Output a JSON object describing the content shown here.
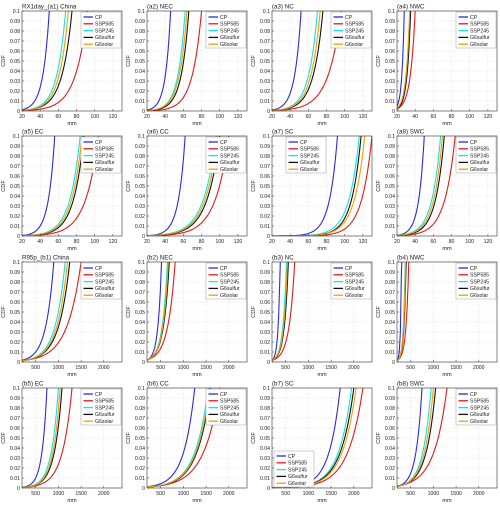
{
  "colors": {
    "CP": "#2b2bd6",
    "SSP585": "#e01a1a",
    "SSP245": "#18e0e0",
    "G6sulfur": "#111111",
    "G6solar": "#f0a000"
  },
  "legend_labels": [
    "CP",
    "SSP585",
    "SSP245",
    "G6sulfur",
    "G6solar"
  ],
  "chart_data": [
    {
      "type": "line",
      "title": "RX1day_(a1) China",
      "xlabel": "mm",
      "ylabel": "CDF",
      "xlim": [
        20,
        130
      ],
      "ylim": [
        0,
        0.1
      ],
      "xticks": [
        20,
        40,
        60,
        80,
        100,
        120
      ],
      "yticks": [
        0,
        0.01,
        0.02,
        0.03,
        0.04,
        0.05,
        0.06,
        0.07,
        0.08,
        0.09,
        0.1
      ],
      "grid": true,
      "legend": "top-right",
      "series": [
        {
          "name": "CP",
          "p01": 50,
          "p1": 34
        },
        {
          "name": "SSP585",
          "p01": 92,
          "p1": 62
        },
        {
          "name": "SSP245",
          "p01": 68,
          "p1": 46
        },
        {
          "name": "G6sulfur",
          "p01": 75,
          "p1": 50
        },
        {
          "name": "G6solar",
          "p01": 71,
          "p1": 48
        }
      ]
    },
    {
      "type": "line",
      "title": "(a2) NEC",
      "xlabel": "mm",
      "ylabel": "CDF",
      "xlim": [
        20,
        130
      ],
      "ylim": [
        0,
        0.1
      ],
      "xticks": [
        20,
        40,
        60,
        80,
        100,
        120
      ],
      "yticks": [
        0,
        0.01,
        0.02,
        0.03,
        0.04,
        0.05,
        0.06,
        0.07,
        0.08,
        0.09,
        0.1
      ],
      "grid": true,
      "legend": "top-right",
      "series": [
        {
          "name": "CP",
          "p01": 46,
          "p1": 33
        },
        {
          "name": "SSP585",
          "p01": 80,
          "p1": 57
        },
        {
          "name": "SSP245",
          "p01": 62,
          "p1": 44
        },
        {
          "name": "G6sulfur",
          "p01": 66,
          "p1": 47
        },
        {
          "name": "G6solar",
          "p01": 64,
          "p1": 45
        }
      ]
    },
    {
      "type": "line",
      "title": "(a3) NC",
      "xlabel": "mm",
      "ylabel": "CDF",
      "xlim": [
        20,
        130
      ],
      "ylim": [
        0,
        0.1
      ],
      "xticks": [
        20,
        40,
        60,
        80,
        100,
        120
      ],
      "yticks": [
        0,
        0.01,
        0.02,
        0.03,
        0.04,
        0.05,
        0.06,
        0.07,
        0.08,
        0.09,
        0.1
      ],
      "grid": true,
      "legend": "top-right",
      "series": [
        {
          "name": "CP",
          "p01": 52,
          "p1": 36
        },
        {
          "name": "SSP585",
          "p01": 96,
          "p1": 64
        },
        {
          "name": "SSP245",
          "p01": 70,
          "p1": 48
        },
        {
          "name": "G6sulfur",
          "p01": 76,
          "p1": 52
        },
        {
          "name": "G6solar",
          "p01": 73,
          "p1": 50
        }
      ]
    },
    {
      "type": "line",
      "title": "(a4) NWC",
      "xlabel": "mm",
      "ylabel": "CDF",
      "xlim": [
        20,
        130
      ],
      "ylim": [
        0,
        0.1
      ],
      "xticks": [
        20,
        40,
        60,
        80,
        100,
        120
      ],
      "yticks": [
        0,
        0.01,
        0.02,
        0.03,
        0.04,
        0.05,
        0.06,
        0.07,
        0.08,
        0.09,
        0.1
      ],
      "grid": true,
      "legend": "top-right",
      "series": [
        {
          "name": "CP",
          "p01": 28,
          "p1": 22
        },
        {
          "name": "SSP585",
          "p01": 40,
          "p1": 28
        },
        {
          "name": "SSP245",
          "p01": 34,
          "p1": 25
        },
        {
          "name": "G6sulfur",
          "p01": 35,
          "p1": 26
        },
        {
          "name": "G6solar",
          "p01": 34,
          "p1": 25
        }
      ]
    },
    {
      "type": "line",
      "title": "(a5) EC",
      "xlabel": "mm",
      "ylabel": "CDF",
      "xlim": [
        20,
        130
      ],
      "ylim": [
        0,
        0.1
      ],
      "xticks": [
        20,
        40,
        60,
        80,
        100,
        120
      ],
      "yticks": [
        0,
        0.01,
        0.02,
        0.03,
        0.04,
        0.05,
        0.06,
        0.07,
        0.08,
        0.09,
        0.1
      ],
      "grid": true,
      "legend": "top-right",
      "series": [
        {
          "name": "CP",
          "p01": 56,
          "p1": 40
        },
        {
          "name": "SSP585",
          "p01": 104,
          "p1": 72
        },
        {
          "name": "SSP245",
          "p01": 84,
          "p1": 58
        },
        {
          "name": "G6sulfur",
          "p01": 88,
          "p1": 62
        },
        {
          "name": "G6solar",
          "p01": 86,
          "p1": 60
        }
      ]
    },
    {
      "type": "line",
      "title": "(a6) CC",
      "xlabel": "mm",
      "ylabel": "CDF",
      "xlim": [
        20,
        130
      ],
      "ylim": [
        0,
        0.1
      ],
      "xticks": [
        20,
        40,
        60,
        80,
        100,
        120
      ],
      "yticks": [
        0,
        0.01,
        0.02,
        0.03,
        0.04,
        0.05,
        0.06,
        0.07,
        0.08,
        0.09,
        0.1
      ],
      "grid": true,
      "legend": "top-right",
      "series": [
        {
          "name": "CP",
          "p01": 62,
          "p1": 45
        },
        {
          "name": "SSP585",
          "p01": 110,
          "p1": 76
        },
        {
          "name": "SSP245",
          "p01": 96,
          "p1": 64
        },
        {
          "name": "G6sulfur",
          "p01": 100,
          "p1": 68
        },
        {
          "name": "G6solar",
          "p01": 98,
          "p1": 66
        }
      ]
    },
    {
      "type": "line",
      "title": "(a7) SC",
      "xlabel": "mm",
      "ylabel": "CDF",
      "xlim": [
        20,
        130
      ],
      "ylim": [
        0,
        0.1
      ],
      "xticks": [
        20,
        40,
        60,
        80,
        100,
        120
      ],
      "yticks": [
        0,
        0.01,
        0.02,
        0.03,
        0.04,
        0.05,
        0.06,
        0.07,
        0.08,
        0.09,
        0.1
      ],
      "grid": true,
      "legend": "top-left",
      "series": [
        {
          "name": "CP",
          "p01": 92,
          "p1": 72
        },
        {
          "name": "SSP585",
          "p01": 130,
          "p1": 104
        },
        {
          "name": "SSP245",
          "p01": 116,
          "p1": 90
        },
        {
          "name": "G6sulfur",
          "p01": 118,
          "p1": 94
        },
        {
          "name": "G6solar",
          "p01": 122,
          "p1": 96
        }
      ]
    },
    {
      "type": "line",
      "title": "(a8) SWC",
      "xlabel": "mm",
      "ylabel": "CDF",
      "xlim": [
        20,
        130
      ],
      "ylim": [
        0,
        0.1
      ],
      "xticks": [
        20,
        40,
        60,
        80,
        100,
        120
      ],
      "yticks": [
        0,
        0.01,
        0.02,
        0.03,
        0.04,
        0.05,
        0.06,
        0.07,
        0.08,
        0.09,
        0.1
      ],
      "grid": true,
      "legend": "top-right",
      "series": [
        {
          "name": "CP",
          "p01": 50,
          "p1": 36
        },
        {
          "name": "SSP585",
          "p01": 84,
          "p1": 58
        },
        {
          "name": "SSP245",
          "p01": 68,
          "p1": 46
        },
        {
          "name": "G6sulfur",
          "p01": 72,
          "p1": 50
        },
        {
          "name": "G6solar",
          "p01": 70,
          "p1": 48
        }
      ]
    },
    {
      "type": "line",
      "title": "R95p_(b1) China",
      "xlabel": "mm",
      "ylabel": "CDF",
      "xlim": [
        200,
        2400
      ],
      "ylim": [
        0,
        0.1
      ],
      "xticks": [
        500,
        1000,
        1500,
        2000
      ],
      "yticks": [
        0,
        0.01,
        0.02,
        0.03,
        0.04,
        0.05,
        0.06,
        0.07,
        0.08,
        0.09,
        0.1
      ],
      "grid": true,
      "legend": "top-right",
      "series": [
        {
          "name": "CP",
          "p01": 900,
          "p1": 500
        },
        {
          "name": "SSP585",
          "p01": 1500,
          "p1": 800
        },
        {
          "name": "SSP245",
          "p01": 1150,
          "p1": 650
        },
        {
          "name": "G6sulfur",
          "p01": 1250,
          "p1": 700
        },
        {
          "name": "G6solar",
          "p01": 1200,
          "p1": 680
        }
      ]
    },
    {
      "type": "line",
      "title": "(b2) NEC",
      "xlabel": "mm",
      "ylabel": "CDF",
      "xlim": [
        200,
        2400
      ],
      "ylim": [
        0,
        0.1
      ],
      "xticks": [
        500,
        1000,
        1500,
        2000
      ],
      "yticks": [
        0,
        0.01,
        0.02,
        0.03,
        0.04,
        0.05,
        0.06,
        0.07,
        0.08,
        0.09,
        0.1
      ],
      "grid": true,
      "legend": "top-right",
      "series": [
        {
          "name": "CP",
          "p01": 520,
          "p1": 340
        },
        {
          "name": "SSP585",
          "p01": 820,
          "p1": 450
        },
        {
          "name": "SSP245",
          "p01": 650,
          "p1": 390
        },
        {
          "name": "G6sulfur",
          "p01": 690,
          "p1": 400
        },
        {
          "name": "G6solar",
          "p01": 670,
          "p1": 395
        }
      ]
    },
    {
      "type": "line",
      "title": "(b3) NC",
      "xlabel": "mm",
      "ylabel": "CDF",
      "xlim": [
        200,
        2400
      ],
      "ylim": [
        0,
        0.1
      ],
      "xticks": [
        500,
        1000,
        1500,
        2000
      ],
      "yticks": [
        0,
        0.01,
        0.02,
        0.03,
        0.04,
        0.05,
        0.06,
        0.07,
        0.08,
        0.09,
        0.1
      ],
      "grid": true,
      "legend": "top-right",
      "series": [
        {
          "name": "CP",
          "p01": 380,
          "p1": 280
        },
        {
          "name": "SSP585",
          "p01": 700,
          "p1": 420
        },
        {
          "name": "SSP245",
          "p01": 520,
          "p1": 340
        },
        {
          "name": "G6sulfur",
          "p01": 560,
          "p1": 360
        },
        {
          "name": "G6solar",
          "p01": 540,
          "p1": 350
        }
      ]
    },
    {
      "type": "line",
      "title": "(b4) NWC",
      "xlabel": "mm",
      "ylabel": "CDF",
      "xlim": [
        200,
        2400
      ],
      "ylim": [
        0,
        0.1
      ],
      "xticks": [
        500,
        1000,
        1500,
        2000
      ],
      "yticks": [
        0,
        0.01,
        0.02,
        0.03,
        0.04,
        0.05,
        0.06,
        0.07,
        0.08,
        0.09,
        0.1
      ],
      "grid": true,
      "legend": "top-right",
      "series": [
        {
          "name": "CP",
          "p01": 300,
          "p1": 250
        },
        {
          "name": "SSP585",
          "p01": 460,
          "p1": 320
        },
        {
          "name": "SSP245",
          "p01": 380,
          "p1": 290
        },
        {
          "name": "G6sulfur",
          "p01": 400,
          "p1": 295
        },
        {
          "name": "G6solar",
          "p01": 390,
          "p1": 292
        }
      ]
    },
    {
      "type": "line",
      "title": "(b5) EC",
      "xlabel": "mm",
      "ylabel": "CDF",
      "xlim": [
        200,
        2400
      ],
      "ylim": [
        0,
        0.1
      ],
      "xticks": [
        500,
        1000,
        1500,
        2000
      ],
      "yticks": [
        0,
        0.01,
        0.02,
        0.03,
        0.04,
        0.05,
        0.06,
        0.07,
        0.08,
        0.09,
        0.1
      ],
      "grid": true,
      "legend": "top-right",
      "series": [
        {
          "name": "CP",
          "p01": 750,
          "p1": 500
        },
        {
          "name": "SSP585",
          "p01": 1300,
          "p1": 820
        },
        {
          "name": "SSP245",
          "p01": 1000,
          "p1": 650
        },
        {
          "name": "G6sulfur",
          "p01": 1080,
          "p1": 700
        },
        {
          "name": "G6solar",
          "p01": 1040,
          "p1": 680
        }
      ]
    },
    {
      "type": "line",
      "title": "(b6) CC",
      "xlabel": "mm",
      "ylabel": "CDF",
      "xlim": [
        200,
        2400
      ],
      "ylim": [
        0,
        0.1
      ],
      "xticks": [
        500,
        1000,
        1500,
        2000
      ],
      "yticks": [
        0,
        0.01,
        0.02,
        0.03,
        0.04,
        0.05,
        0.06,
        0.07,
        0.08,
        0.09,
        0.1
      ],
      "grid": true,
      "legend": "top-right",
      "series": [
        {
          "name": "CP",
          "p01": 1250,
          "p1": 700
        },
        {
          "name": "SSP585",
          "p01": 1800,
          "p1": 1000
        },
        {
          "name": "SSP245",
          "p01": 1550,
          "p1": 880
        },
        {
          "name": "G6sulfur",
          "p01": 1600,
          "p1": 920
        },
        {
          "name": "G6solar",
          "p01": 1580,
          "p1": 900
        }
      ]
    },
    {
      "type": "line",
      "title": "(b7) SC",
      "xlabel": "mm",
      "ylabel": "CDF",
      "xlim": [
        200,
        2400
      ],
      "ylim": [
        0,
        0.1
      ],
      "xticks": [
        500,
        1000,
        1500,
        2000
      ],
      "yticks": [
        0,
        0.01,
        0.02,
        0.03,
        0.04,
        0.05,
        0.06,
        0.07,
        0.08,
        0.09,
        0.1
      ],
      "grid": true,
      "legend": "bottom-left",
      "series": [
        {
          "name": "CP",
          "p01": 1700,
          "p1": 1150
        },
        {
          "name": "SSP585",
          "p01": 2200,
          "p1": 1450
        },
        {
          "name": "SSP245",
          "p01": 1950,
          "p1": 1300
        },
        {
          "name": "G6sulfur",
          "p01": 2000,
          "p1": 1330
        },
        {
          "name": "G6solar",
          "p01": 2050,
          "p1": 1360
        }
      ]
    },
    {
      "type": "line",
      "title": "(b8) SWC",
      "xlabel": "mm",
      "ylabel": "CDF",
      "xlim": [
        200,
        2400
      ],
      "ylim": [
        0,
        0.1
      ],
      "xticks": [
        500,
        1000,
        1500,
        2000
      ],
      "yticks": [
        0,
        0.01,
        0.02,
        0.03,
        0.04,
        0.05,
        0.06,
        0.07,
        0.08,
        0.09,
        0.1
      ],
      "grid": true,
      "legend": "top-right",
      "series": [
        {
          "name": "CP",
          "p01": 750,
          "p1": 450
        },
        {
          "name": "SSP585",
          "p01": 1300,
          "p1": 650
        },
        {
          "name": "SSP245",
          "p01": 950,
          "p1": 540
        },
        {
          "name": "G6sulfur",
          "p01": 1050,
          "p1": 580
        },
        {
          "name": "G6solar",
          "p01": 1000,
          "p1": 560
        }
      ]
    }
  ]
}
